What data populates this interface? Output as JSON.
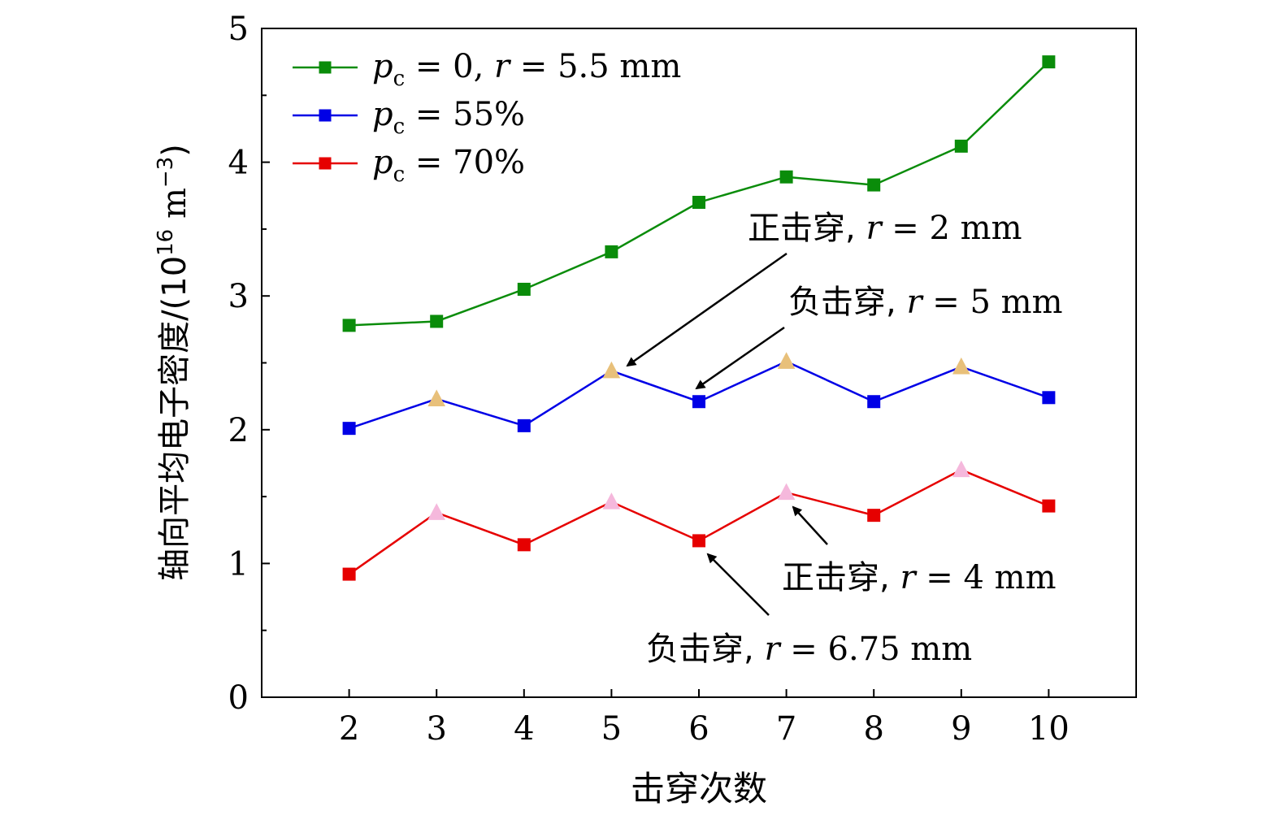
{
  "chart_data": {
    "type": "line",
    "xlabel": "击穿次数",
    "ylabel": "轴向平均电子密度/(10",
    "ylabel_exp": "16",
    "ylabel_unit": " m",
    "ylabel_unit_exp": "−3",
    "ylabel_close": ")",
    "x": [
      2,
      3,
      4,
      5,
      6,
      7,
      8,
      9,
      10
    ],
    "xlim": [
      1,
      11
    ],
    "ylim": [
      0,
      5
    ],
    "x_ticks": [
      "2",
      "3",
      "4",
      "5",
      "6",
      "7",
      "8",
      "9",
      "10"
    ],
    "y_ticks": [
      "0",
      "1",
      "2",
      "3",
      "4",
      "5"
    ],
    "legend_position": "top-left",
    "series": [
      {
        "name": "p_c = 0, r = 5.5 mm",
        "color": "#0a8c0a",
        "values": [
          2.78,
          2.81,
          3.05,
          3.33,
          3.7,
          3.89,
          3.83,
          4.12,
          4.75
        ],
        "markers": [
          "square",
          "square",
          "square",
          "square",
          "square",
          "square",
          "square",
          "square",
          "square"
        ],
        "legend": {
          "var": "p",
          "sub": "c",
          "text": " = 0, ",
          "var2": "r",
          "text2": " = 5.5 mm"
        }
      },
      {
        "name": "p_c = 55%",
        "color": "#0000e6",
        "values": [
          2.01,
          2.23,
          2.03,
          2.44,
          2.21,
          2.51,
          2.21,
          2.47,
          2.24
        ],
        "markers": [
          "square",
          "triangle",
          "square",
          "triangle",
          "square",
          "triangle",
          "square",
          "triangle",
          "square"
        ],
        "legend": {
          "var": "p",
          "sub": "c",
          "text": " = 55%",
          "var2": "",
          "text2": ""
        }
      },
      {
        "name": "p_c = 70%",
        "color": "#e60000",
        "values": [
          0.92,
          1.38,
          1.14,
          1.46,
          1.17,
          1.53,
          1.36,
          1.7,
          1.43
        ],
        "markers": [
          "square",
          "triangle",
          "square",
          "triangle",
          "square",
          "triangle",
          "square",
          "triangle",
          "square"
        ],
        "legend": {
          "var": "p",
          "sub": "c",
          "text": " = 70%",
          "var2": "",
          "text2": ""
        }
      }
    ],
    "triangle_colors": {
      "p_c = 55%": "#e8c07a",
      "p_c = 70%": "#f5b8dc"
    },
    "annotations": [
      {
        "id": "ann-positive-2mm",
        "prefix": "正击穿, ",
        "var": "r",
        "suffix": " = 2 mm",
        "series_index": 1,
        "point_index": 3
      },
      {
        "id": "ann-negative-5mm",
        "prefix": "负击穿, ",
        "var": "r",
        "suffix": " = 5 mm",
        "series_index": 1,
        "point_index": 4
      },
      {
        "id": "ann-positive-4mm",
        "prefix": "正击穿, ",
        "var": "r",
        "suffix": " = 4 mm",
        "series_index": 2,
        "point_index": 5
      },
      {
        "id": "ann-negative-675mm",
        "prefix": "负击穿, ",
        "var": "r",
        "suffix": " = 6.75 mm",
        "series_index": 2,
        "point_index": 4
      }
    ]
  }
}
